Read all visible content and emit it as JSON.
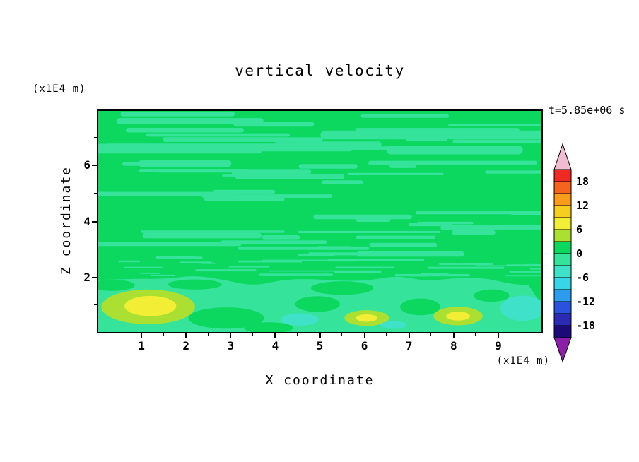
{
  "chart_data": {
    "type": "contour",
    "title": "vertical velocity",
    "time_label": "t=5.85e+06 s",
    "x_axis": {
      "label": "X coordinate",
      "unit": "(x1E4 m)",
      "range": [
        0,
        10
      ],
      "ticks": [
        1,
        2,
        3,
        4,
        5,
        6,
        7,
        8,
        9
      ],
      "minor_tick_step": 0.5
    },
    "z_axis": {
      "label": "Z coordinate",
      "unit": "(x1E4 m)",
      "range": [
        0,
        8
      ],
      "ticks": [
        2,
        4,
        6
      ],
      "minor_ticks": [
        1,
        3,
        5,
        7
      ]
    },
    "colorbar": {
      "tick_labels": [
        "18",
        "12",
        "6",
        "0",
        "-6",
        "-12",
        "-18"
      ],
      "level_max": 21,
      "level_min": -21,
      "band_step": 3,
      "band_colors_top_to_bottom": [
        "#ee2a24",
        "#f4641e",
        "#f89c1b",
        "#f6ce20",
        "#f2ee35",
        "#abe032",
        "#0cd75e",
        "#35e39b",
        "#3fe2c8",
        "#38d4e8",
        "#2e9cee",
        "#2b52dc",
        "#2a2ab4",
        "#1c0a78"
      ],
      "arrow_top_color": "#f2bcd0",
      "arrow_bottom_color": "#8c1fa8"
    },
    "field": {
      "description": "Contour field mostly in the 0..3 band (green) streaked with -3..0 (mint); lower boundary layer below z~2 mostly -3..0 with local maxima ~6..9 (yellow) and minima ~-6..-3 (turquoise)",
      "background_value": 1.5,
      "lower_mint_region": {
        "z_top_mean": 1.9,
        "value": -1.5
      },
      "texture_seed": 11,
      "streaks": {
        "upper_count": 48,
        "fine_count": 30,
        "wide_count": 7,
        "value": -1.5
      },
      "features": [
        {
          "x": 1.15,
          "z": 0.95,
          "rx": 1.05,
          "rz": 0.62,
          "value": 4.5
        },
        {
          "x": 1.2,
          "z": 0.98,
          "rx": 0.58,
          "rz": 0.36,
          "value": 7
        },
        {
          "x": 6.05,
          "z": 0.55,
          "rx": 0.5,
          "rz": 0.28,
          "value": 4.5
        },
        {
          "x": 6.05,
          "z": 0.55,
          "rx": 0.24,
          "rz": 0.13,
          "value": 7
        },
        {
          "x": 8.1,
          "z": 0.62,
          "rx": 0.55,
          "rz": 0.33,
          "value": 4.5
        },
        {
          "x": 8.1,
          "z": 0.62,
          "rx": 0.27,
          "rz": 0.16,
          "value": 7
        },
        {
          "x": 4.55,
          "z": 0.5,
          "rx": 0.42,
          "rz": 0.22,
          "value": -4.5
        },
        {
          "x": 6.65,
          "z": 0.3,
          "rx": 0.3,
          "rz": 0.14,
          "value": -4.5
        },
        {
          "x": 9.55,
          "z": 0.9,
          "rx": 0.5,
          "rz": 0.45,
          "value": -4.5
        },
        {
          "x": 2.9,
          "z": 0.55,
          "rx": 0.85,
          "rz": 0.38,
          "value": 1.5
        },
        {
          "x": 3.85,
          "z": 0.2,
          "rx": 0.55,
          "rz": 0.2,
          "value": 1.5
        },
        {
          "x": 4.95,
          "z": 1.05,
          "rx": 0.5,
          "rz": 0.28,
          "value": 1.5
        },
        {
          "x": 5.5,
          "z": 1.62,
          "rx": 0.7,
          "rz": 0.24,
          "value": 1.5
        },
        {
          "x": 7.25,
          "z": 0.95,
          "rx": 0.45,
          "rz": 0.3,
          "value": 1.5
        },
        {
          "x": 8.85,
          "z": 1.35,
          "rx": 0.4,
          "rz": 0.22,
          "value": 1.5
        },
        {
          "x": 0.35,
          "z": 1.72,
          "rx": 0.5,
          "rz": 0.2,
          "value": 1.5
        },
        {
          "x": 2.2,
          "z": 1.75,
          "rx": 0.6,
          "rz": 0.18,
          "value": 1.5
        }
      ]
    }
  }
}
